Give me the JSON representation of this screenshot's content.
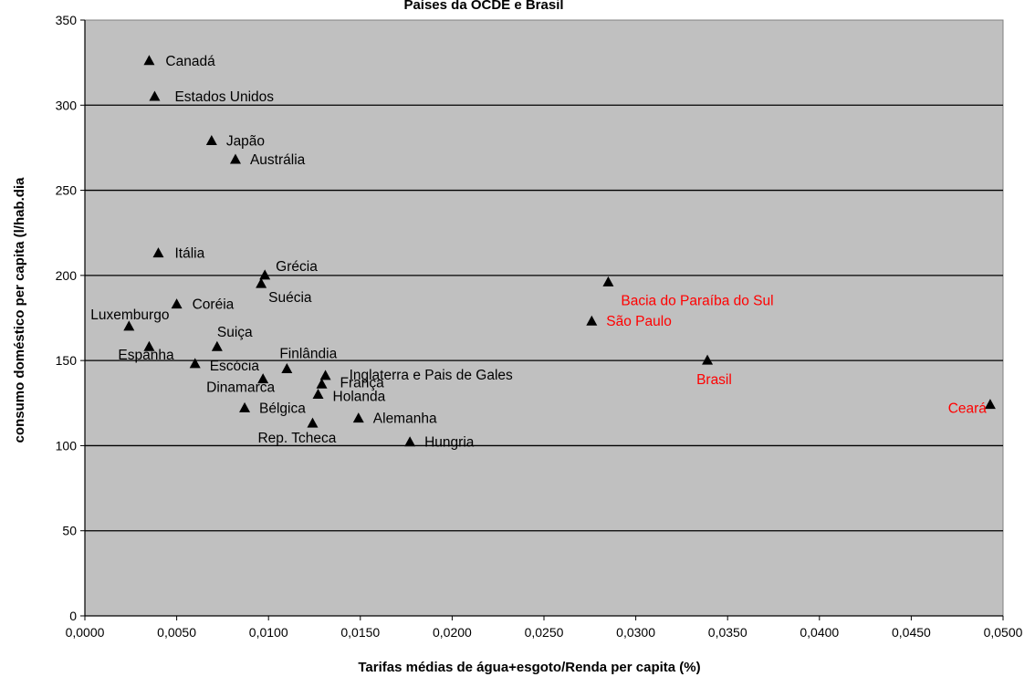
{
  "chart_data": {
    "type": "scatter",
    "title": "Países da OCDE e Brasil",
    "xlabel": "Tarifas médias de água+esgoto/Renda per capita (%)",
    "ylabel": "consumo doméstico per capita (l/hab.dia",
    "xlim": [
      0,
      0.05
    ],
    "ylim": [
      0,
      350
    ],
    "x_ticks": [
      "0,0000",
      "0,0050",
      "0,0100",
      "0,0150",
      "0,0200",
      "0,0250",
      "0,0300",
      "0,0350",
      "0,0400",
      "0,0450",
      "0,0500"
    ],
    "y_ticks": [
      "0",
      "50",
      "100",
      "150",
      "200",
      "250",
      "300",
      "350"
    ],
    "grid": "horizontal",
    "plot_background": "#c0c0c0",
    "marker": "triangle",
    "marker_color": "#000000",
    "label_colors": {
      "oecd": "#000000",
      "brazil": "#ff0000"
    },
    "points": [
      {
        "label": "Canadá",
        "x": 0.0035,
        "y": 326,
        "group": "oecd"
      },
      {
        "label": "Estados Unidos",
        "x": 0.0038,
        "y": 305,
        "group": "oecd"
      },
      {
        "label": "Japão",
        "x": 0.0069,
        "y": 279,
        "group": "oecd"
      },
      {
        "label": "Austrália",
        "x": 0.0082,
        "y": 268,
        "group": "oecd"
      },
      {
        "label": "Itália",
        "x": 0.004,
        "y": 213,
        "group": "oecd"
      },
      {
        "label": "Grécia",
        "x": 0.0098,
        "y": 200,
        "group": "oecd"
      },
      {
        "label": "Suécia",
        "x": 0.0096,
        "y": 195,
        "group": "oecd"
      },
      {
        "label": "Coréia",
        "x": 0.005,
        "y": 183,
        "group": "oecd"
      },
      {
        "label": "Luxemburgo",
        "x": 0.0024,
        "y": 170,
        "group": "oecd"
      },
      {
        "label": "Suiça",
        "x": 0.0072,
        "y": 158,
        "group": "oecd"
      },
      {
        "label": "Espanha",
        "x": 0.0035,
        "y": 158,
        "group": "oecd"
      },
      {
        "label": "Escócia",
        "x": 0.006,
        "y": 148,
        "group": "oecd"
      },
      {
        "label": "Finlândia",
        "x": 0.011,
        "y": 145,
        "group": "oecd"
      },
      {
        "label": "Inglaterra e Pais de Gales",
        "x": 0.0131,
        "y": 141,
        "group": "oecd"
      },
      {
        "label": "Dinamarca",
        "x": 0.0097,
        "y": 139,
        "group": "oecd"
      },
      {
        "label": "França",
        "x": 0.0129,
        "y": 136,
        "group": "oecd"
      },
      {
        "label": "Holanda",
        "x": 0.0127,
        "y": 130,
        "group": "oecd"
      },
      {
        "label": "Bélgica",
        "x": 0.0087,
        "y": 122,
        "group": "oecd"
      },
      {
        "label": "Alemanha",
        "x": 0.0149,
        "y": 116,
        "group": "oecd"
      },
      {
        "label": "Rep. Tcheca",
        "x": 0.0124,
        "y": 113,
        "group": "oecd"
      },
      {
        "label": "Hungria",
        "x": 0.0177,
        "y": 102,
        "group": "oecd"
      },
      {
        "label": "Bacia do Paraíba do Sul",
        "x": 0.0285,
        "y": 196,
        "group": "brazil"
      },
      {
        "label": "São Paulo",
        "x": 0.0276,
        "y": 173,
        "group": "brazil"
      },
      {
        "label": "Brasil",
        "x": 0.0339,
        "y": 150,
        "group": "brazil"
      },
      {
        "label": "Ceará",
        "x": 0.0493,
        "y": 124,
        "group": "brazil"
      }
    ]
  }
}
